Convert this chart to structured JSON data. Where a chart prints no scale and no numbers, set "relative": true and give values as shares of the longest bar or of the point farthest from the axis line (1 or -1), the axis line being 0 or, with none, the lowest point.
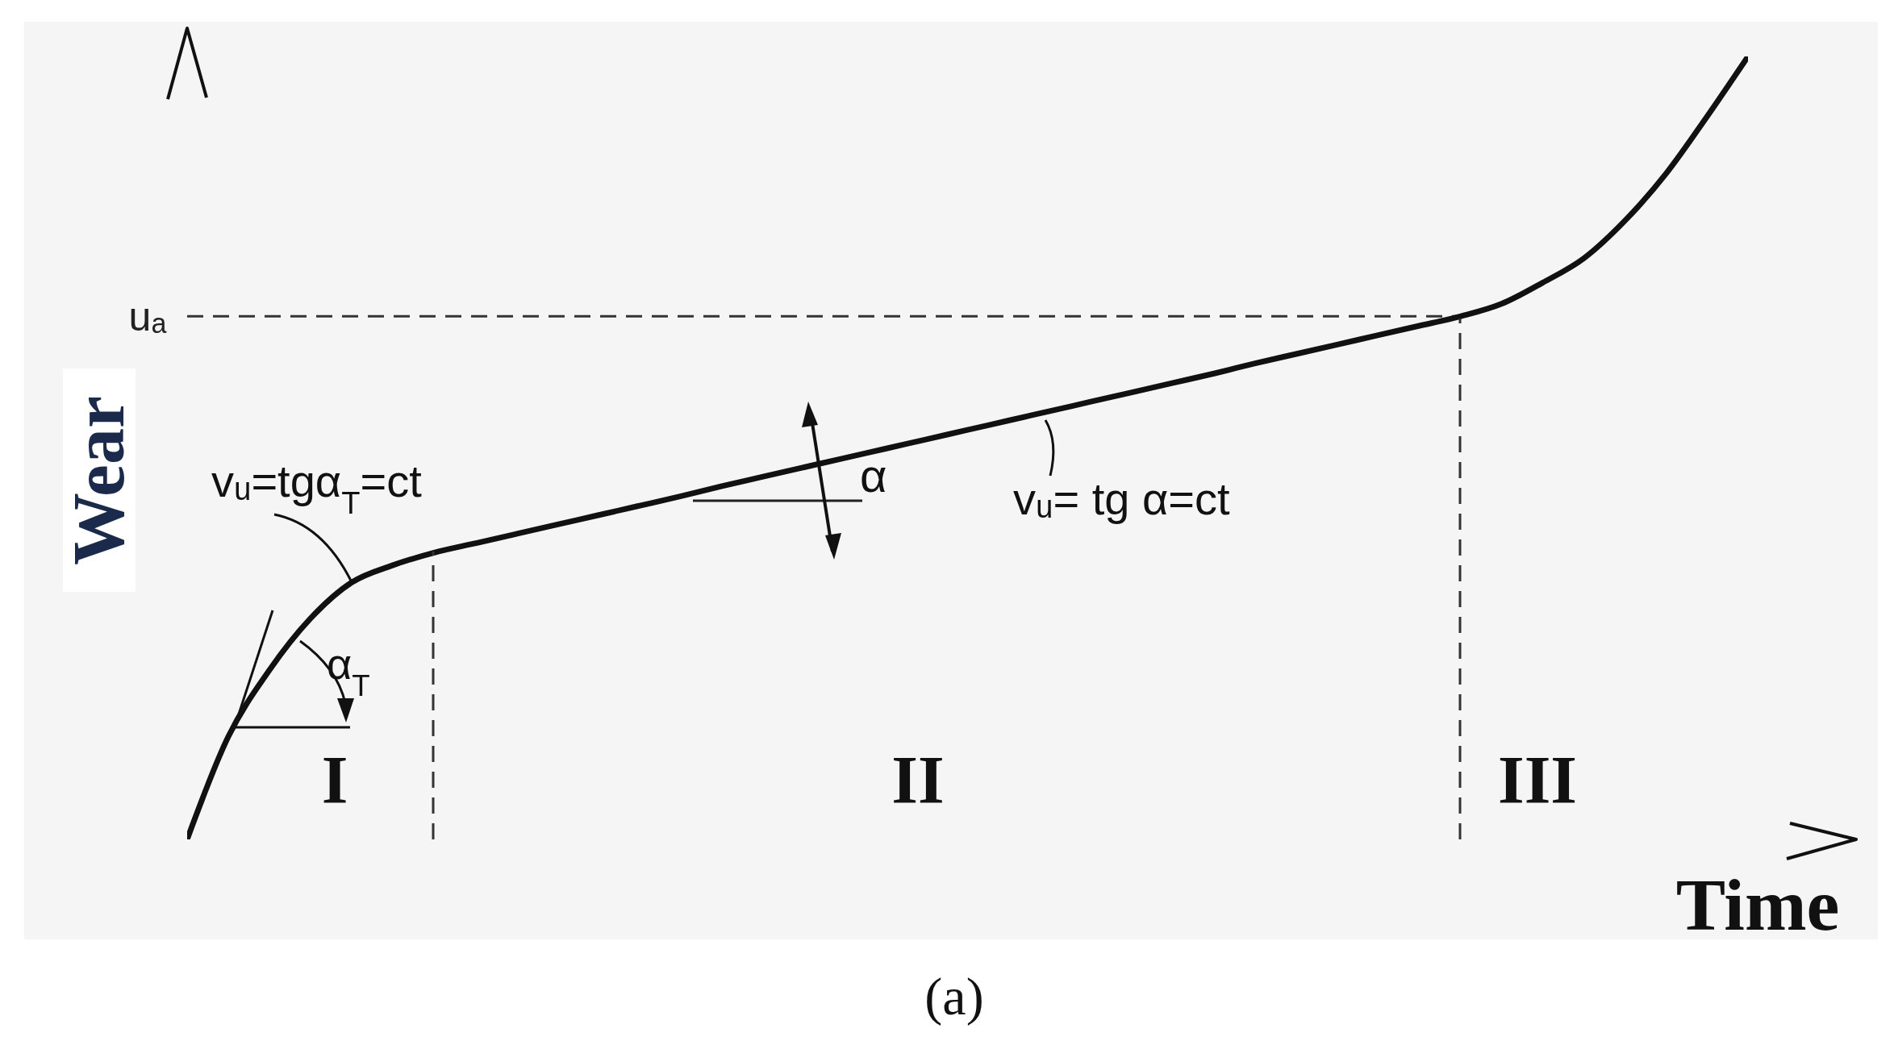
{
  "chart_data": {
    "type": "line",
    "xlabel": "Time",
    "ylabel": "Wear",
    "relative": true,
    "line_style": "solid",
    "categories": [
      null,
      null,
      null,
      null,
      null,
      null,
      null,
      null,
      null,
      null,
      null,
      null,
      null,
      null,
      null,
      null,
      null,
      null,
      null,
      null,
      null,
      null,
      null,
      null,
      null,
      null,
      null,
      null,
      null,
      null,
      null,
      null,
      null,
      null,
      null,
      null,
      null,
      null,
      null
    ],
    "series": [
      {
        "color": "#111111",
        "values": [
          0,
          0.131,
          0.216,
          0.282,
          0.328,
          0.35,
          0.366,
          0.378,
          0.39,
          0.402,
          0.414,
          0.426,
          0.438,
          0.451,
          0.463,
          0.475,
          0.487,
          0.499,
          0.511,
          0.523,
          0.535,
          0.547,
          0.559,
          0.571,
          0.583,
          0.595,
          0.608,
          0.62,
          0.632,
          0.644,
          0.656,
          0.668,
          0.684,
          0.711,
          0.742,
          0.79,
          0.85,
          0.923,
          1
        ]
      }
    ],
    "ref_lines": [
      {
        "axis": "y",
        "value": 0.668,
        "label": "uₐ",
        "color": "#333333",
        "line_style": "dashed"
      }
    ],
    "annotations": [
      "vᵤ=tgα$_{T}$=ct",
      "α$_{T}$",
      "vᵤ= tg α=ct",
      "α",
      "I",
      "II",
      "III",
      "(a)"
    ]
  }
}
